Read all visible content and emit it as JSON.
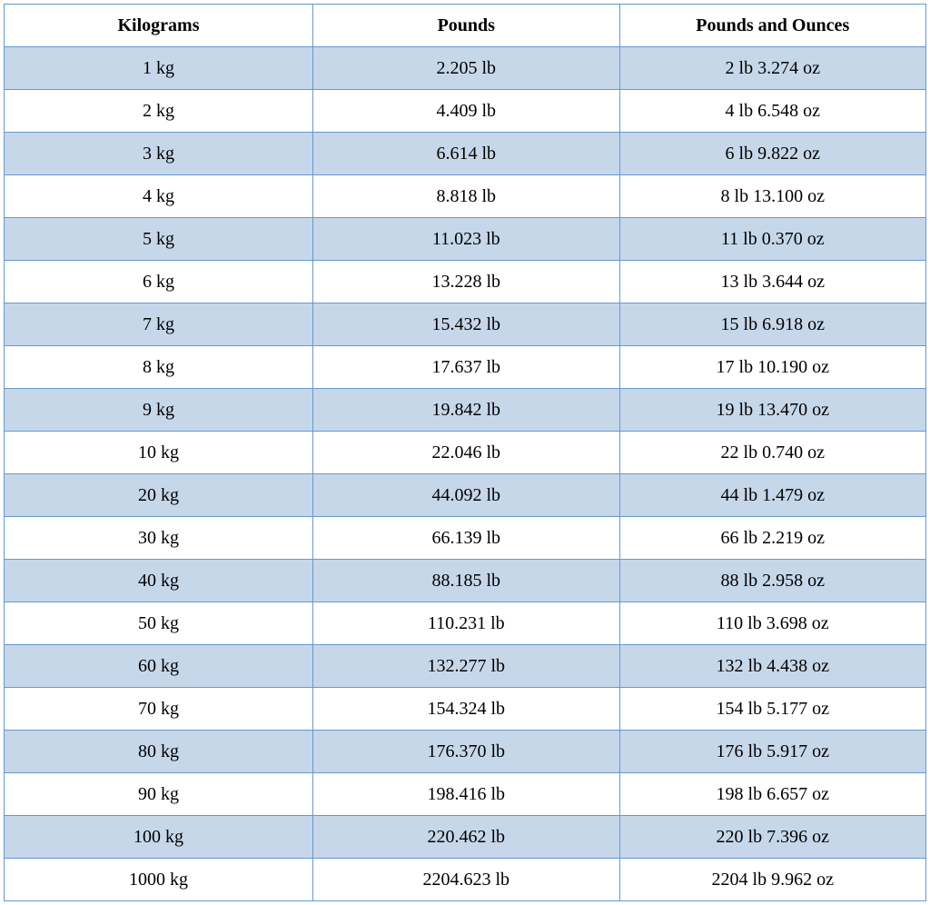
{
  "table": {
    "type": "table",
    "background_color": "#ffffff",
    "border_color": "#6699cc",
    "row_alt_color": "#c6d7ea",
    "row_base_color": "#ffffff",
    "text_color": "#000000",
    "font_family": "Georgia, 'Times New Roman', serif",
    "font_size": 20,
    "header_font_weight": "bold",
    "columns": [
      {
        "label": "Kilograms",
        "width_pct": 33.5
      },
      {
        "label": "Pounds",
        "width_pct": 33.25
      },
      {
        "label": "Pounds and Ounces",
        "width_pct": 33.25
      }
    ],
    "rows": [
      {
        "kg": "1 kg",
        "lb": "2.205 lb",
        "lb_oz": "2 lb 3.274 oz"
      },
      {
        "kg": "2 kg",
        "lb": "4.409 lb",
        "lb_oz": "4 lb 6.548 oz"
      },
      {
        "kg": "3 kg",
        "lb": "6.614 lb",
        "lb_oz": "6 lb 9.822 oz"
      },
      {
        "kg": "4 kg",
        "lb": "8.818 lb",
        "lb_oz": "8 lb 13.100 oz"
      },
      {
        "kg": "5 kg",
        "lb": "11.023 lb",
        "lb_oz": "11 lb 0.370 oz"
      },
      {
        "kg": "6 kg",
        "lb": "13.228 lb",
        "lb_oz": "13 lb 3.644 oz"
      },
      {
        "kg": "7 kg",
        "lb": "15.432 lb",
        "lb_oz": "15 lb 6.918 oz"
      },
      {
        "kg": "8 kg",
        "lb": "17.637 lb",
        "lb_oz": "17 lb 10.190 oz"
      },
      {
        "kg": "9 kg",
        "lb": "19.842 lb",
        "lb_oz": "19 lb 13.470 oz"
      },
      {
        "kg": "10 kg",
        "lb": "22.046 lb",
        "lb_oz": "22 lb 0.740 oz"
      },
      {
        "kg": "20 kg",
        "lb": "44.092 lb",
        "lb_oz": "44 lb 1.479 oz"
      },
      {
        "kg": "30 kg",
        "lb": "66.139 lb",
        "lb_oz": "66 lb 2.219 oz"
      },
      {
        "kg": "40 kg",
        "lb": "88.185 lb",
        "lb_oz": "88 lb 2.958 oz"
      },
      {
        "kg": "50 kg",
        "lb": "110.231 lb",
        "lb_oz": "110 lb 3.698 oz"
      },
      {
        "kg": "60 kg",
        "lb": "132.277 lb",
        "lb_oz": "132 lb 4.438 oz"
      },
      {
        "kg": "70 kg",
        "lb": "154.324 lb",
        "lb_oz": "154 lb 5.177 oz"
      },
      {
        "kg": "80 kg",
        "lb": "176.370 lb",
        "lb_oz": "176 lb 5.917 oz"
      },
      {
        "kg": "90 kg",
        "lb": "198.416 lb",
        "lb_oz": "198 lb 6.657 oz"
      },
      {
        "kg": "100 kg",
        "lb": "220.462 lb",
        "lb_oz": "220 lb 7.396 oz"
      },
      {
        "kg": "1000 kg",
        "lb": "2204.623 lb",
        "lb_oz": "2204 lb 9.962 oz"
      }
    ]
  }
}
